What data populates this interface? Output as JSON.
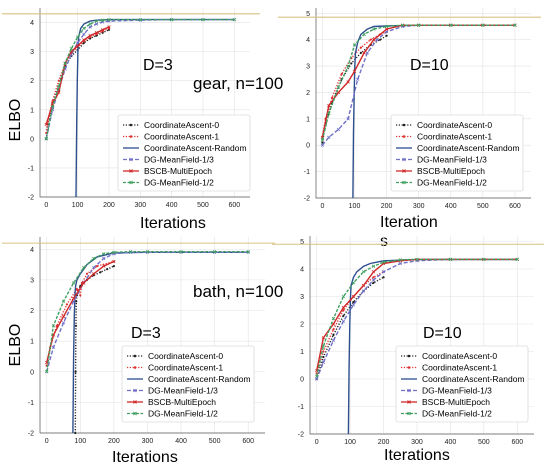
{
  "series_styles": [
    {
      "name": "CoordinateAscent-0",
      "color": "#222222",
      "dash": "1.2,1.6",
      "marker": "dot"
    },
    {
      "name": "CoordinateAscent-1",
      "color": "#e03030",
      "dash": "1.2,1.6",
      "marker": "dot"
    },
    {
      "name": "CoordinateAscent-Random",
      "color": "#2d4f8e",
      "dash": "",
      "marker": "none"
    },
    {
      "name": "DG-MeanField-1/3",
      "color": "#7070c8",
      "dash": "4,2",
      "marker": "x"
    },
    {
      "name": "BSCB-MultiEpoch",
      "color": "#d02828",
      "dash": "",
      "marker": "x"
    },
    {
      "name": "DG-MeanField-1/2",
      "color": "#40a060",
      "dash": "3,1.5",
      "marker": "x"
    }
  ],
  "annotations": [
    {
      "id": "gear",
      "text": "gear, n=100"
    },
    {
      "id": "bath",
      "text": "bath, n=100"
    }
  ],
  "chart_data": [
    {
      "type": "line",
      "panel": "top-left",
      "title": "D=3",
      "xlabel": "Iterations",
      "ylabel": "ELBO",
      "xlim": [
        -20,
        650
      ],
      "ylim": [
        -2,
        4.5
      ],
      "xticks": [
        0,
        100,
        200,
        300,
        400,
        500,
        600
      ],
      "yticks": [
        -2,
        -1,
        0,
        1,
        2,
        3,
        4
      ],
      "reference_line": 4.3,
      "legend": "bottom-right",
      "series": [
        {
          "name": "CoordinateAscent-0",
          "x": [
            0,
            5,
            20,
            40,
            60,
            80,
            100,
            120,
            140,
            160,
            180,
            200
          ],
          "y": [
            0.0,
            0.5,
            1.2,
            1.8,
            2.5,
            2.85,
            3.05,
            3.3,
            3.45,
            3.55,
            3.65,
            3.75
          ]
        },
        {
          "name": "CoordinateAscent-1",
          "x": [
            0,
            5,
            20,
            40,
            60,
            80,
            100,
            120,
            140,
            160,
            180,
            200
          ],
          "y": [
            0.2,
            0.6,
            1.3,
            2.0,
            2.6,
            2.95,
            3.15,
            3.35,
            3.5,
            3.6,
            3.7,
            3.8
          ]
        },
        {
          "name": "CoordinateAscent-Random",
          "x": [
            95,
            97,
            99,
            101,
            103,
            110,
            120,
            140,
            160,
            200,
            300,
            400,
            500,
            600
          ],
          "y": [
            -2.0,
            0.5,
            2.0,
            3.0,
            3.5,
            3.8,
            3.95,
            4.05,
            4.08,
            4.1,
            4.1,
            4.1,
            4.1,
            4.1
          ]
        },
        {
          "name": "DG-MeanField-1/3",
          "x": [
            0,
            20,
            40,
            60,
            80,
            100,
            120,
            140,
            160,
            180,
            200,
            300,
            400,
            500,
            600
          ],
          "y": [
            0.0,
            1.0,
            1.7,
            2.4,
            2.9,
            3.3,
            3.6,
            3.85,
            3.95,
            4.02,
            4.05,
            4.08,
            4.1,
            4.1,
            4.1
          ]
        },
        {
          "name": "BSCB-MultiEpoch",
          "x": [
            0,
            20,
            40,
            60,
            80,
            100,
            120,
            140,
            160,
            180,
            200
          ],
          "y": [
            0.5,
            1.2,
            1.6,
            2.6,
            3.0,
            3.2,
            3.4,
            3.55,
            3.65,
            3.75,
            3.85
          ]
        },
        {
          "name": "DG-MeanField-1/2",
          "x": [
            0,
            20,
            40,
            60,
            80,
            100,
            120,
            140,
            160,
            180,
            200,
            300,
            400,
            500,
            600
          ],
          "y": [
            0.0,
            1.1,
            1.8,
            2.6,
            3.1,
            3.5,
            3.8,
            3.95,
            4.05,
            4.08,
            4.1,
            4.1,
            4.1,
            4.1,
            4.1
          ]
        }
      ]
    },
    {
      "type": "line",
      "panel": "top-right",
      "title": "D=10",
      "xlabel": "Iteration",
      "xlabel_line2": "s",
      "ylabel": "",
      "xlim": [
        -20,
        650
      ],
      "ylim": [
        -2,
        5.2
      ],
      "xticks": [
        0,
        100,
        200,
        300,
        400,
        500,
        600
      ],
      "yticks": [
        -2,
        -1,
        0,
        1,
        2,
        3,
        4,
        5
      ],
      "reference_line": 4.85,
      "legend": "bottom-right",
      "series": [
        {
          "name": "CoordinateAscent-0",
          "x": [
            0,
            10,
            30,
            60,
            90,
            120,
            150,
            180,
            200
          ],
          "y": [
            0.1,
            0.8,
            1.6,
            2.5,
            3.1,
            3.5,
            3.8,
            4.0,
            4.15
          ]
        },
        {
          "name": "CoordinateAscent-1",
          "x": [
            0,
            10,
            30,
            60,
            90,
            120,
            150,
            180,
            200
          ],
          "y": [
            0.3,
            1.0,
            1.8,
            2.7,
            3.3,
            3.7,
            4.0,
            4.2,
            4.3
          ]
        },
        {
          "name": "CoordinateAscent-Random",
          "x": [
            95,
            97,
            99,
            101,
            103,
            110,
            120,
            140,
            160,
            200,
            300,
            400,
            500,
            600
          ],
          "y": [
            -2.0,
            0.5,
            2.0,
            3.0,
            3.5,
            3.9,
            4.2,
            4.4,
            4.5,
            4.52,
            4.55,
            4.55,
            4.55,
            4.55
          ]
        },
        {
          "name": "DG-MeanField-1/3",
          "x": [
            0,
            20,
            50,
            80,
            110,
            140,
            170,
            200,
            250,
            300,
            400,
            500,
            600
          ],
          "y": [
            0.0,
            0.3,
            0.6,
            1.0,
            2.5,
            3.5,
            4.0,
            4.3,
            4.5,
            4.55,
            4.55,
            4.55,
            4.55
          ]
        },
        {
          "name": "BSCB-MultiEpoch",
          "x": [
            0,
            20,
            50,
            80,
            100,
            130,
            160,
            200,
            250,
            300,
            400,
            500,
            600
          ],
          "y": [
            0.3,
            1.5,
            2.0,
            2.4,
            2.8,
            3.5,
            4.0,
            4.4,
            4.55,
            4.55,
            4.55,
            4.55,
            4.55
          ]
        },
        {
          "name": "DG-MeanField-1/2",
          "x": [
            0,
            20,
            50,
            80,
            100,
            130,
            160,
            200,
            250,
            300,
            400,
            500,
            600
          ],
          "y": [
            0.2,
            1.2,
            2.2,
            3.0,
            3.8,
            4.2,
            4.4,
            4.5,
            4.55,
            4.55,
            4.55,
            4.55,
            4.55
          ]
        }
      ]
    },
    {
      "type": "line",
      "panel": "bottom-left",
      "title": "D=3",
      "xlabel": "Iterations",
      "ylabel": "ELBO",
      "xlim": [
        -20,
        650
      ],
      "ylim": [
        -2,
        4.4
      ],
      "xticks": [
        0,
        100,
        200,
        300,
        400,
        500,
        600
      ],
      "yticks": [
        -2,
        -1,
        0,
        1,
        2,
        3,
        4
      ],
      "reference_line": 4.2,
      "legend": "bottom-right",
      "series": [
        {
          "name": "CoordinateAscent-0",
          "x": [
            85,
            86,
            87,
            88,
            90,
            100,
            120,
            140,
            160,
            180,
            200
          ],
          "y": [
            -2.0,
            0.0,
            1.5,
            2.3,
            2.5,
            2.8,
            3.0,
            3.15,
            3.25,
            3.35,
            3.45
          ]
        },
        {
          "name": "CoordinateAscent-1",
          "x": [
            0,
            10,
            30,
            60,
            90,
            100,
            105,
            120,
            150,
            200
          ],
          "y": [
            0.2,
            0.8,
            1.5,
            2.2,
            2.7,
            2.5,
            2.9,
            3.2,
            3.45,
            3.6
          ]
        },
        {
          "name": "CoordinateAscent-Random",
          "x": [
            78,
            80,
            82,
            84,
            86,
            90,
            100,
            120,
            150,
            200,
            300,
            400,
            500,
            600
          ],
          "y": [
            -2.0,
            0.5,
            1.8,
            2.5,
            2.8,
            3.0,
            3.2,
            3.5,
            3.75,
            3.88,
            3.9,
            3.9,
            3.9,
            3.9
          ]
        },
        {
          "name": "DG-MeanField-1/3",
          "x": [
            0,
            20,
            50,
            80,
            110,
            140,
            170,
            200,
            250,
            300,
            400,
            500,
            600
          ],
          "y": [
            0.0,
            0.8,
            1.6,
            2.3,
            2.9,
            3.4,
            3.7,
            3.85,
            3.9,
            3.9,
            3.9,
            3.9,
            3.9
          ]
        },
        {
          "name": "BSCB-MultiEpoch",
          "x": [
            0,
            20,
            50,
            80,
            110,
            140,
            170,
            200
          ],
          "y": [
            0.3,
            1.2,
            1.8,
            2.4,
            2.9,
            3.2,
            3.45,
            3.6
          ]
        },
        {
          "name": "DG-MeanField-1/2",
          "x": [
            0,
            20,
            50,
            80,
            110,
            140,
            170,
            200,
            250,
            300,
            400,
            500,
            600
          ],
          "y": [
            0.0,
            1.5,
            2.3,
            2.9,
            3.4,
            3.7,
            3.85,
            3.9,
            3.92,
            3.92,
            3.92,
            3.92,
            3.92
          ]
        }
      ]
    },
    {
      "type": "line",
      "panel": "bottom-right",
      "title": "D=10",
      "xlabel": "Iterations",
      "ylabel": "",
      "xlim": [
        -20,
        650
      ],
      "ylim": [
        -2,
        5.2
      ],
      "xticks": [
        0,
        100,
        200,
        300,
        400,
        500,
        600
      ],
      "yticks": [
        -2,
        -1,
        0,
        1,
        2,
        3,
        4,
        5
      ],
      "reference_line": 4.9,
      "legend": "bottom-right",
      "series": [
        {
          "name": "CoordinateAscent-0",
          "x": [
            0,
            20,
            50,
            80,
            110,
            140,
            170,
            200
          ],
          "y": [
            0.0,
            0.8,
            1.6,
            2.3,
            2.8,
            3.2,
            3.5,
            3.7
          ]
        },
        {
          "name": "CoordinateAscent-1",
          "x": [
            0,
            20,
            50,
            80,
            110,
            140,
            170,
            200
          ],
          "y": [
            0.2,
            1.0,
            1.8,
            2.5,
            3.0,
            3.4,
            3.7,
            3.9
          ]
        },
        {
          "name": "CoordinateAscent-Random",
          "x": [
            95,
            97,
            99,
            101,
            103,
            110,
            120,
            140,
            160,
            200,
            300,
            400,
            500,
            600
          ],
          "y": [
            -2.0,
            0.5,
            2.0,
            3.0,
            3.4,
            3.7,
            3.9,
            4.1,
            4.2,
            4.3,
            4.35,
            4.35,
            4.35,
            4.35
          ]
        },
        {
          "name": "DG-MeanField-1/3",
          "x": [
            0,
            20,
            50,
            80,
            110,
            140,
            170,
            200,
            250,
            300,
            400,
            500,
            600
          ],
          "y": [
            0.0,
            0.6,
            1.4,
            2.1,
            2.7,
            3.2,
            3.6,
            3.9,
            4.2,
            4.3,
            4.35,
            4.35,
            4.35
          ]
        },
        {
          "name": "BSCB-MultiEpoch",
          "x": [
            0,
            20,
            50,
            80,
            110,
            140,
            170,
            200,
            250,
            300,
            400,
            500,
            600
          ],
          "y": [
            0.3,
            1.5,
            2.0,
            2.6,
            3.0,
            3.4,
            3.9,
            4.2,
            4.3,
            4.35,
            4.35,
            4.35,
            4.35
          ]
        },
        {
          "name": "DG-MeanField-1/2",
          "x": [
            0,
            20,
            50,
            80,
            110,
            140,
            170,
            200,
            250,
            300,
            400,
            500,
            600
          ],
          "y": [
            0.1,
            1.2,
            2.2,
            3.0,
            3.5,
            3.9,
            4.1,
            4.25,
            4.33,
            4.35,
            4.35,
            4.35,
            4.35
          ]
        }
      ]
    }
  ]
}
